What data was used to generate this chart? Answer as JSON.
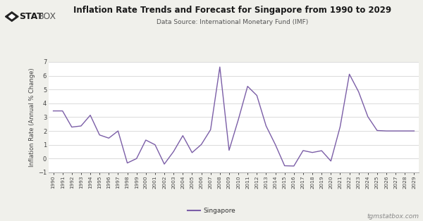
{
  "title": "Inflation Rate Trends and Forecast for Singapore from 1990 to 2029",
  "subtitle": "Data Source: International Monetary Fund (IMF)",
  "ylabel": "Inflation Rate (Annual % Change)",
  "legend_label": "Singapore",
  "footer": "tgmstatbox.com",
  "line_color": "#7B5EA7",
  "bg_color": "#f0f0eb",
  "plot_bg_color": "#ffffff",
  "ylim": [
    -1,
    7
  ],
  "years": [
    1990,
    1991,
    1992,
    1993,
    1994,
    1995,
    1996,
    1997,
    1998,
    1999,
    2000,
    2001,
    2002,
    2003,
    2004,
    2005,
    2006,
    2007,
    2008,
    2009,
    2010,
    2011,
    2012,
    2013,
    2014,
    2015,
    2016,
    2017,
    2018,
    2019,
    2020,
    2021,
    2022,
    2023,
    2024,
    2025,
    2026,
    2027,
    2028,
    2029
  ],
  "values": [
    3.45,
    3.45,
    2.28,
    2.36,
    3.14,
    1.71,
    1.48,
    2.0,
    -0.32,
    0.0,
    1.34,
    1.0,
    -0.4,
    0.51,
    1.66,
    0.43,
    1.02,
    2.09,
    6.63,
    0.6,
    2.82,
    5.23,
    4.57,
    2.36,
    1.01,
    -0.52,
    -0.54,
    0.58,
    0.44,
    0.57,
    -0.18,
    2.3,
    6.11,
    4.83,
    3.03,
    2.03,
    2.0,
    2.0,
    2.0,
    2.0
  ]
}
